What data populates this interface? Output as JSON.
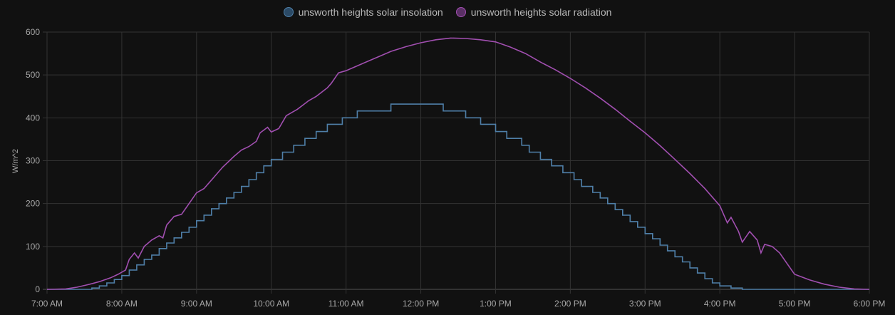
{
  "legend": [
    {
      "label": "unsworth heights solar insolation",
      "color": "#4f7fa8",
      "fill": "#2b4a66"
    },
    {
      "label": "unsworth heights solar radiation",
      "color": "#a14fb0",
      "fill": "#5a2f65"
    }
  ],
  "chart_data": {
    "type": "line",
    "title": "",
    "xlabel": "",
    "ylabel": "W/m^2",
    "ylim": [
      0,
      600
    ],
    "xlim_hours": [
      7,
      18
    ],
    "grid": true,
    "legend_position": "top",
    "y_ticks": [
      0,
      100,
      200,
      300,
      400,
      500,
      600
    ],
    "x_ticks": [
      "7:00 AM",
      "8:00 AM",
      "9:00 AM",
      "10:00 AM",
      "11:00 AM",
      "12:00 PM",
      "1:00 PM",
      "2:00 PM",
      "3:00 PM",
      "4:00 PM",
      "5:00 PM",
      "6:00 PM"
    ],
    "series": [
      {
        "name": "unsworth heights solar insolation",
        "style": "step",
        "color": "#4f7fa8",
        "points": [
          [
            7.0,
            0
          ],
          [
            7.6,
            3
          ],
          [
            7.7,
            8
          ],
          [
            7.8,
            15
          ],
          [
            7.9,
            23
          ],
          [
            8.0,
            32
          ],
          [
            8.1,
            45
          ],
          [
            8.2,
            57
          ],
          [
            8.3,
            70
          ],
          [
            8.4,
            80
          ],
          [
            8.5,
            95
          ],
          [
            8.6,
            108
          ],
          [
            8.7,
            120
          ],
          [
            8.8,
            133
          ],
          [
            8.9,
            145
          ],
          [
            9.0,
            160
          ],
          [
            9.1,
            173
          ],
          [
            9.2,
            188
          ],
          [
            9.3,
            200
          ],
          [
            9.4,
            213
          ],
          [
            9.5,
            226
          ],
          [
            9.6,
            240
          ],
          [
            9.7,
            256
          ],
          [
            9.8,
            272
          ],
          [
            9.9,
            288
          ],
          [
            10.0,
            303
          ],
          [
            10.15,
            320
          ],
          [
            10.3,
            336
          ],
          [
            10.45,
            352
          ],
          [
            10.6,
            368
          ],
          [
            10.75,
            385
          ],
          [
            10.95,
            400
          ],
          [
            11.15,
            416
          ],
          [
            11.6,
            432
          ],
          [
            12.3,
            416
          ],
          [
            12.6,
            400
          ],
          [
            12.8,
            385
          ],
          [
            13.0,
            368
          ],
          [
            13.15,
            352
          ],
          [
            13.35,
            336
          ],
          [
            13.45,
            320
          ],
          [
            13.6,
            303
          ],
          [
            13.75,
            288
          ],
          [
            13.9,
            272
          ],
          [
            14.05,
            256
          ],
          [
            14.15,
            240
          ],
          [
            14.3,
            226
          ],
          [
            14.4,
            213
          ],
          [
            14.5,
            200
          ],
          [
            14.6,
            186
          ],
          [
            14.7,
            173
          ],
          [
            14.8,
            158
          ],
          [
            14.9,
            145
          ],
          [
            15.0,
            130
          ],
          [
            15.1,
            118
          ],
          [
            15.2,
            103
          ],
          [
            15.3,
            90
          ],
          [
            15.4,
            76
          ],
          [
            15.5,
            64
          ],
          [
            15.6,
            50
          ],
          [
            15.7,
            38
          ],
          [
            15.8,
            25
          ],
          [
            15.9,
            15
          ],
          [
            16.0,
            8
          ],
          [
            16.15,
            3
          ],
          [
            16.3,
            0
          ],
          [
            18.0,
            0
          ]
        ]
      },
      {
        "name": "unsworth heights solar radiation",
        "style": "line",
        "color": "#a14fb0",
        "points": [
          [
            7.0,
            0
          ],
          [
            7.25,
            1
          ],
          [
            7.4,
            5
          ],
          [
            7.55,
            11
          ],
          [
            7.7,
            18
          ],
          [
            7.85,
            27
          ],
          [
            7.95,
            35
          ],
          [
            8.05,
            45
          ],
          [
            8.1,
            70
          ],
          [
            8.17,
            85
          ],
          [
            8.22,
            73
          ],
          [
            8.3,
            100
          ],
          [
            8.4,
            115
          ],
          [
            8.5,
            125
          ],
          [
            8.55,
            120
          ],
          [
            8.6,
            150
          ],
          [
            8.7,
            170
          ],
          [
            8.8,
            175
          ],
          [
            8.9,
            200
          ],
          [
            9.0,
            225
          ],
          [
            9.1,
            235
          ],
          [
            9.2,
            255
          ],
          [
            9.35,
            285
          ],
          [
            9.5,
            310
          ],
          [
            9.6,
            325
          ],
          [
            9.7,
            333
          ],
          [
            9.8,
            345
          ],
          [
            9.85,
            365
          ],
          [
            9.95,
            378
          ],
          [
            10.0,
            367
          ],
          [
            10.1,
            375
          ],
          [
            10.2,
            405
          ],
          [
            10.35,
            420
          ],
          [
            10.5,
            440
          ],
          [
            10.6,
            450
          ],
          [
            10.75,
            470
          ],
          [
            10.8,
            480
          ],
          [
            10.9,
            505
          ],
          [
            11.0,
            510
          ],
          [
            11.2,
            525
          ],
          [
            11.4,
            540
          ],
          [
            11.6,
            555
          ],
          [
            11.8,
            566
          ],
          [
            12.0,
            575
          ],
          [
            12.2,
            582
          ],
          [
            12.4,
            586
          ],
          [
            12.6,
            585
          ],
          [
            12.8,
            582
          ],
          [
            13.0,
            577
          ],
          [
            13.2,
            565
          ],
          [
            13.4,
            550
          ],
          [
            13.6,
            530
          ],
          [
            13.8,
            512
          ],
          [
            14.0,
            492
          ],
          [
            14.2,
            470
          ],
          [
            14.4,
            446
          ],
          [
            14.6,
            420
          ],
          [
            14.8,
            392
          ],
          [
            15.0,
            365
          ],
          [
            15.2,
            335
          ],
          [
            15.4,
            303
          ],
          [
            15.6,
            270
          ],
          [
            15.8,
            235
          ],
          [
            16.0,
            195
          ],
          [
            16.05,
            175
          ],
          [
            16.1,
            155
          ],
          [
            16.15,
            168
          ],
          [
            16.25,
            135
          ],
          [
            16.3,
            110
          ],
          [
            16.4,
            135
          ],
          [
            16.5,
            115
          ],
          [
            16.55,
            85
          ],
          [
            16.6,
            105
          ],
          [
            16.7,
            100
          ],
          [
            16.8,
            85
          ],
          [
            16.9,
            60
          ],
          [
            17.0,
            35
          ],
          [
            17.2,
            22
          ],
          [
            17.4,
            12
          ],
          [
            17.6,
            5
          ],
          [
            17.8,
            1
          ],
          [
            18.0,
            0
          ]
        ]
      }
    ]
  }
}
